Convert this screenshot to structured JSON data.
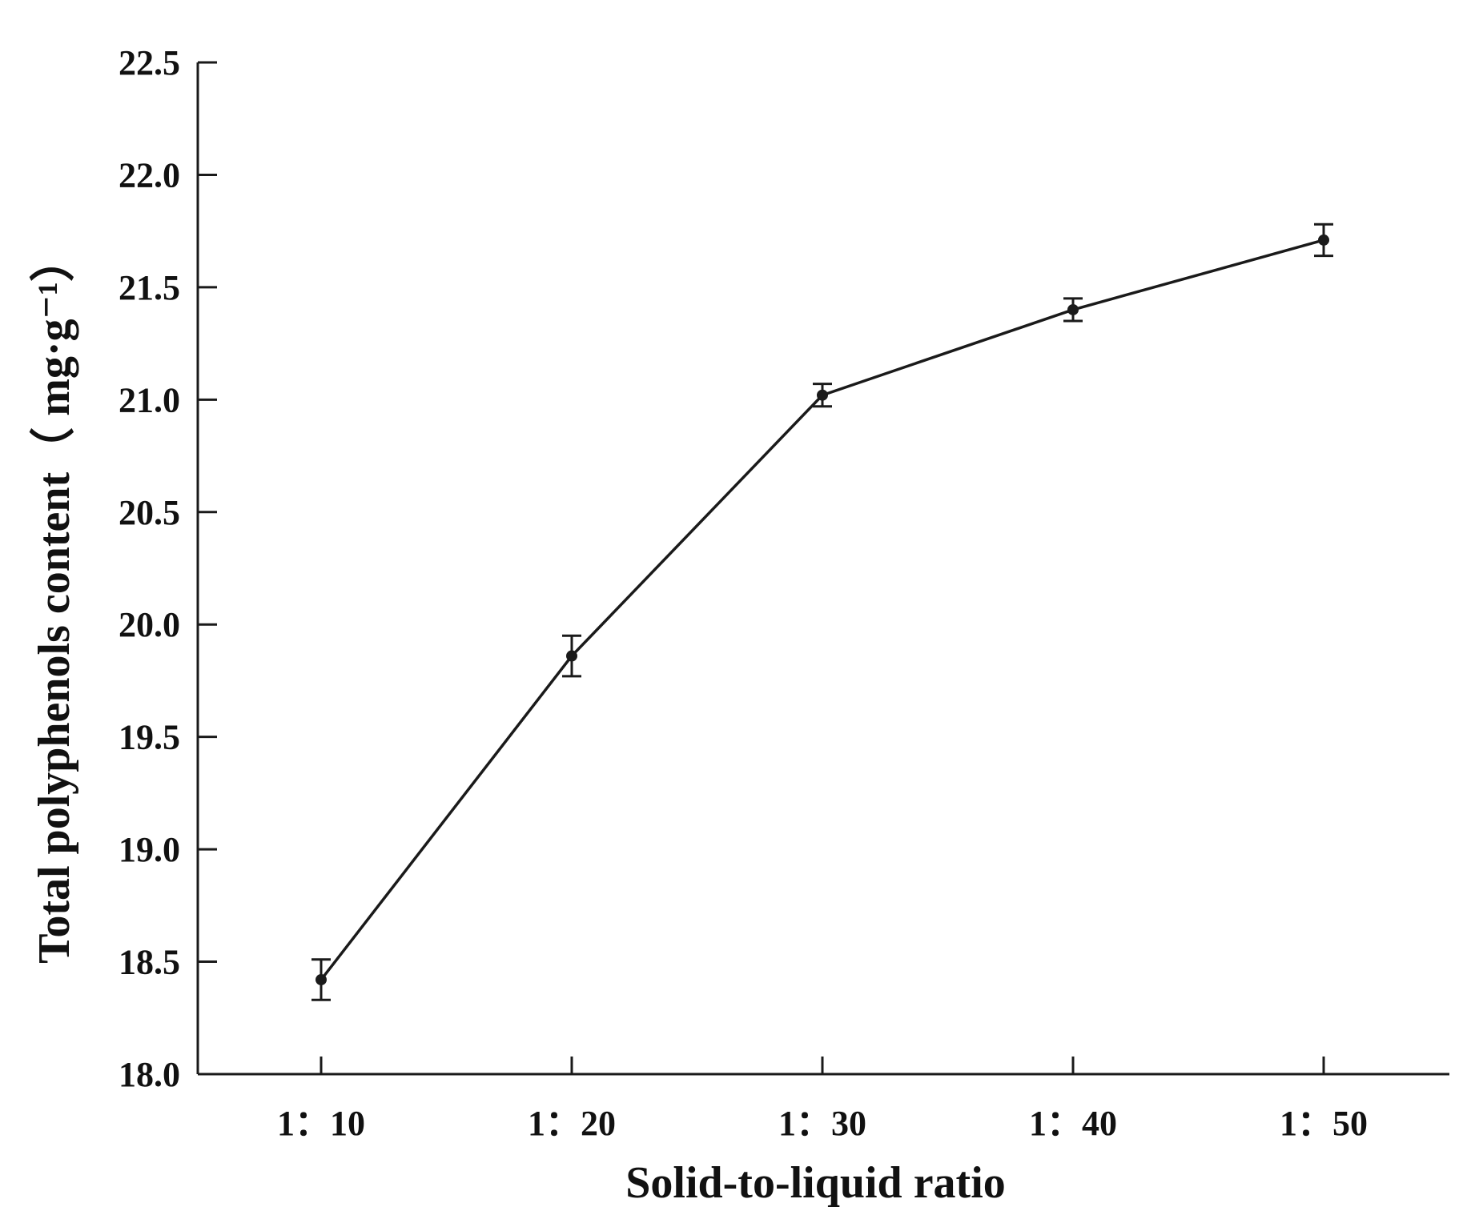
{
  "chart_data": {
    "type": "line",
    "title": "",
    "xlabel": "Solid-to-liquid ratio",
    "ylabel": "Total polyphenols content（ mg·g⁻¹）",
    "categories": [
      "1：10",
      "1：20",
      "1：30",
      "1：40",
      "1：50"
    ],
    "series": [
      {
        "values": [
          18.42,
          19.86,
          21.02,
          21.4,
          21.71
        ],
        "error": [
          0.09,
          0.09,
          0.05,
          0.05,
          0.07
        ]
      }
    ],
    "ylim": [
      18.0,
      22.5
    ],
    "yticks": [
      "18.0",
      "18.5",
      "19.0",
      "19.5",
      "20.0",
      "20.5",
      "21.0",
      "21.5",
      "22.0",
      "22.5"
    ],
    "grid": false,
    "legend": "none",
    "colors": {
      "line": "#1a1a1a",
      "marker": "#1a1a1a",
      "axis": "#1a1a1a"
    }
  }
}
